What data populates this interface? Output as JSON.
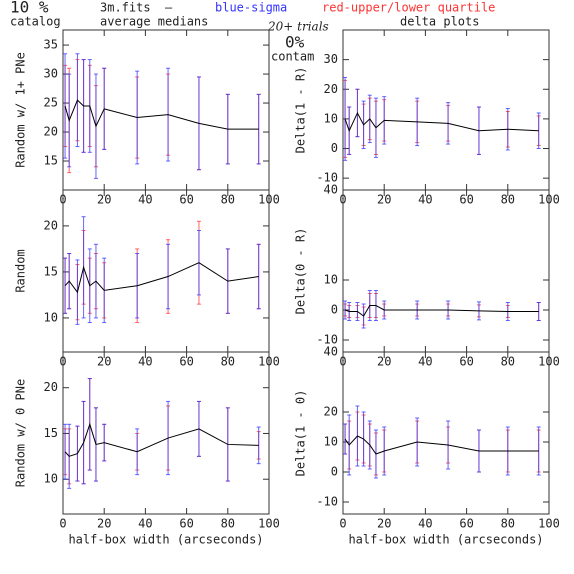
{
  "header": {
    "catalog_pct": "10 %",
    "catalog": "catalog",
    "file": "3m.fits",
    "dash": "–",
    "average": "average medians",
    "sigma_note": "blue-sigma",
    "quartile_note": "red-upper/lower quartile",
    "trials": "20+ trials",
    "contam_pct": "0%",
    "contam": "contam",
    "delta": "delta plots"
  },
  "chart_data": [
    {
      "type": "line",
      "ylabel": "Random w/ 1+ PNe",
      "x": [
        1,
        3,
        7,
        10,
        13,
        16,
        20,
        36,
        51,
        66,
        80,
        95
      ],
      "xlim": [
        0,
        100
      ],
      "xticks": [
        0,
        20,
        40,
        60,
        80,
        100
      ],
      "ylim": [
        10,
        37.6
      ],
      "yticks": [
        15,
        20,
        25,
        30,
        35
      ],
      "values": [
        24.5,
        22,
        25.5,
        24.5,
        24.5,
        21,
        24,
        22.5,
        23,
        21.5,
        20.5,
        20.5
      ],
      "sigma": [
        9,
        8,
        8,
        8,
        8,
        9,
        7,
        8,
        8,
        8,
        6,
        6
      ],
      "quartile": [
        7,
        9,
        7,
        8,
        7,
        7,
        7,
        7,
        7,
        8,
        6,
        6
      ],
      "color": "#000000",
      "sigma_color": "#3333ff",
      "quartile_color": "#ff3333"
    },
    {
      "type": "line",
      "ylabel": "Delta(1 - R)",
      "x": [
        1,
        3,
        7,
        10,
        13,
        16,
        20,
        36,
        51,
        66,
        80,
        95
      ],
      "xlim": [
        0,
        100
      ],
      "xticks": [
        0,
        20,
        40,
        60,
        80,
        100
      ],
      "ylim": [
        -14,
        40
      ],
      "yticks": [
        -10,
        0,
        10,
        20,
        30
      ],
      "values": [
        10,
        6,
        12,
        8,
        10,
        7,
        9.5,
        9,
        8.5,
        6,
        6.5,
        6
      ],
      "sigma": [
        14,
        8,
        8,
        8,
        8,
        10,
        8,
        8,
        7,
        8,
        7,
        6
      ],
      "quartile": [
        13,
        8,
        8,
        7,
        7,
        9,
        7,
        7,
        6,
        8,
        6,
        5
      ],
      "color": "#000000",
      "sigma_color": "#3333ff",
      "quartile_color": "#ff3333"
    },
    {
      "type": "line",
      "ylabel": "Random",
      "x": [
        1,
        3,
        7,
        10,
        13,
        16,
        20,
        36,
        51,
        66,
        80,
        95
      ],
      "xlim": [
        0,
        100
      ],
      "xticks": [
        0,
        20,
        40,
        60,
        80,
        100
      ],
      "ylim": [
        6.3,
        23.9
      ],
      "yticks": [
        10,
        15,
        20
      ],
      "values": [
        13.5,
        14,
        12.8,
        15.5,
        13.5,
        14,
        13,
        13.5,
        14.5,
        16,
        14,
        14.5
      ],
      "sigma": [
        3,
        3,
        3.5,
        5.5,
        4,
        4,
        3.5,
        3.5,
        3.5,
        3.5,
        3.5,
        3.5
      ],
      "quartile": [
        3,
        3,
        3,
        4,
        3,
        3,
        3,
        4,
        4,
        4.5,
        3.5,
        3.5
      ],
      "color": "#000000",
      "sigma_color": "#3333ff",
      "quartile_color": "#ff3333"
    },
    {
      "type": "line",
      "ylabel": "Delta(0 - R)",
      "x": [
        1,
        3,
        7,
        10,
        13,
        16,
        20,
        36,
        51,
        66,
        80,
        95
      ],
      "xlim": [
        0,
        100
      ],
      "xticks": [
        0,
        20,
        40,
        60,
        80,
        100
      ],
      "ylim": [
        -14,
        40
      ],
      "yticks": [
        -10,
        0,
        10,
        40
      ],
      "values": [
        0,
        -0.5,
        -0.5,
        -2,
        1.5,
        1.5,
        0,
        0,
        0,
        -0.3,
        -0.5,
        -0.5
      ],
      "sigma": [
        3,
        3,
        3,
        4,
        5,
        5,
        3,
        3,
        3,
        3,
        3,
        3
      ],
      "quartile": [
        2,
        2,
        2,
        3,
        4,
        4,
        2,
        2,
        2,
        2,
        2,
        3
      ],
      "color": "#000000",
      "sigma_color": "#3333ff",
      "quartile_color": "#ff3333"
    },
    {
      "type": "line",
      "ylabel": "Random w/ 0 PNe",
      "xlabel": "half-box width (arcseconds)",
      "x": [
        1,
        3,
        7,
        10,
        13,
        16,
        20,
        36,
        51,
        66,
        80,
        95
      ],
      "xlim": [
        0,
        100
      ],
      "xticks": [
        0,
        20,
        40,
        60,
        80,
        100
      ],
      "ylim": [
        6.2,
        23.9
      ],
      "yticks": [
        10,
        15,
        20
      ],
      "values": [
        13,
        12.5,
        12.8,
        14,
        16,
        13.8,
        14,
        13,
        14.5,
        15.5,
        13.8,
        13.7
      ],
      "sigma": [
        3,
        3.5,
        3,
        4.5,
        5,
        4,
        2,
        2.5,
        4,
        3,
        4,
        2
      ],
      "quartile": [
        2.5,
        3,
        3,
        4.5,
        5,
        4,
        2,
        2,
        3.5,
        3,
        4,
        1.5
      ],
      "color": "#000000",
      "sigma_color": "#3333ff",
      "quartile_color": "#ff3333"
    },
    {
      "type": "line",
      "ylabel": "Delta(1 - 0)",
      "xlabel": "half-box width (arcseconds)",
      "x": [
        1,
        3,
        7,
        10,
        13,
        16,
        20,
        36,
        51,
        66,
        80,
        95
      ],
      "xlim": [
        0,
        100
      ],
      "xticks": [
        0,
        20,
        40,
        60,
        80,
        100
      ],
      "ylim": [
        -14,
        40
      ],
      "yticks": [
        -10,
        0,
        10,
        20,
        40
      ],
      "values": [
        11,
        9,
        12,
        11,
        9,
        6,
        7,
        10,
        9,
        7,
        7,
        7
      ],
      "sigma": [
        5,
        10,
        10,
        9,
        8,
        8,
        8,
        8,
        8,
        7,
        8,
        8
      ],
      "quartile": [
        5,
        8,
        8,
        8,
        7,
        7,
        7,
        7,
        6,
        7,
        7,
        7
      ],
      "color": "#000000",
      "sigma_color": "#3333ff",
      "quartile_color": "#ff3333"
    }
  ]
}
